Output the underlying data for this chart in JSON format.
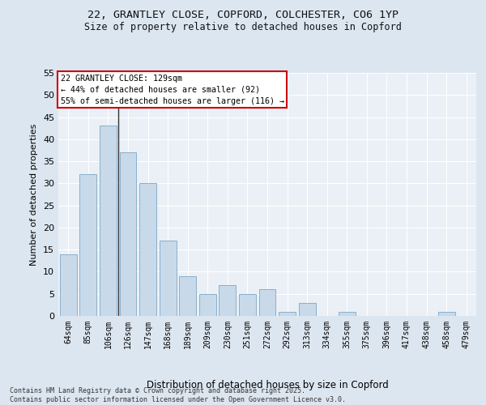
{
  "title_line1": "22, GRANTLEY CLOSE, COPFORD, COLCHESTER, CO6 1YP",
  "title_line2": "Size of property relative to detached houses in Copford",
  "xlabel": "Distribution of detached houses by size in Copford",
  "ylabel": "Number of detached properties",
  "categories": [
    "64sqm",
    "85sqm",
    "106sqm",
    "126sqm",
    "147sqm",
    "168sqm",
    "189sqm",
    "209sqm",
    "230sqm",
    "251sqm",
    "272sqm",
    "292sqm",
    "313sqm",
    "334sqm",
    "355sqm",
    "375sqm",
    "396sqm",
    "417sqm",
    "438sqm",
    "458sqm",
    "479sqm"
  ],
  "values": [
    14,
    32,
    43,
    37,
    30,
    17,
    9,
    5,
    7,
    5,
    6,
    1,
    3,
    0,
    1,
    0,
    0,
    0,
    0,
    1,
    0
  ],
  "bar_color": "#c8d9ea",
  "bar_edge_color": "#8ab0cc",
  "annotation_line1": "22 GRANTLEY CLOSE: 129sqm",
  "annotation_line2": "← 44% of detached houses are smaller (92)",
  "annotation_line3": "55% of semi-detached houses are larger (116) →",
  "annotation_box_facecolor": "#ffffff",
  "annotation_box_edgecolor": "#cc0000",
  "property_line_xindex": 2,
  "ylim": [
    0,
    55
  ],
  "yticks": [
    0,
    5,
    10,
    15,
    20,
    25,
    30,
    35,
    40,
    45,
    50,
    55
  ],
  "bg_color": "#dce6f0",
  "plot_bg_color": "#eaf0f6",
  "grid_color": "#ffffff",
  "footer_line1": "Contains HM Land Registry data © Crown copyright and database right 2025.",
  "footer_line2": "Contains public sector information licensed under the Open Government Licence v3.0."
}
